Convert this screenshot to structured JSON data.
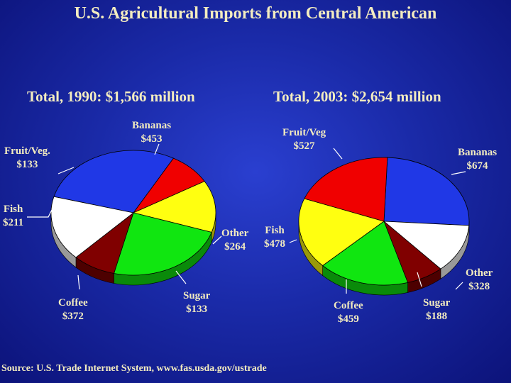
{
  "title": "U.S. Agricultural Imports from Central American",
  "source": "Source:  U.S. Trade Internet System, www.fas.usda.gov/ustrade",
  "colors": {
    "Bananas": "#2038e6",
    "Fruit/Veg": "#f00000",
    "Fish": "#ffff10",
    "Coffee": "#10e610",
    "Sugar": "#800000",
    "Other": "#ffffff"
  },
  "chart_data": [
    {
      "type": "pie",
      "title": "Total, 1990:  $1,566 million",
      "categories": [
        "Bananas",
        "Fruit/Veg",
        "Fish",
        "Coffee",
        "Sugar",
        "Other"
      ],
      "values": [
        453,
        133,
        211,
        372,
        133,
        264
      ],
      "labels": [
        {
          "name": "Bananas",
          "value": "$453"
        },
        {
          "name": "Fruit/Veg.",
          "value": "$133"
        },
        {
          "name": "Fish",
          "value": "$211"
        },
        {
          "name": "Coffee",
          "value": "$372"
        },
        {
          "name": "Sugar",
          "value": "$133"
        },
        {
          "name": "Other",
          "value": "$264"
        }
      ]
    },
    {
      "type": "pie",
      "title": "Total, 2003:  $2,654 million",
      "categories": [
        "Bananas",
        "Other",
        "Sugar",
        "Coffee",
        "Fish",
        "Fruit/Veg"
      ],
      "values": [
        674,
        328,
        188,
        459,
        478,
        527
      ],
      "labels": [
        {
          "name": "Bananas",
          "value": "$674"
        },
        {
          "name": "Other",
          "value": "$328"
        },
        {
          "name": "Sugar",
          "value": "$188"
        },
        {
          "name": "Coffee",
          "value": "$459"
        },
        {
          "name": "Fish",
          "value": "$478"
        },
        {
          "name": "Fruit/Veg",
          "value": "$527"
        }
      ]
    }
  ]
}
